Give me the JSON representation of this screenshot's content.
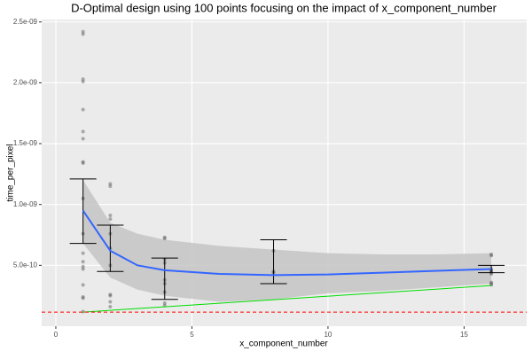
{
  "chart_data": {
    "type": "scatter",
    "title": "D-Optimal design using 100 points focusing on the impact of x_component_number",
    "x_label": "x_component_number",
    "y_label": "time_per_pixel",
    "xlim": [
      -0.52,
      17.3
    ],
    "ylim": [
      0,
      2.52e-09
    ],
    "xticks": [
      0,
      5,
      10,
      15
    ],
    "yticks": [
      {
        "value": 5e-10,
        "label": "5.0e-10"
      },
      {
        "value": 1e-09,
        "label": "1.0e-09"
      },
      {
        "value": 1.5e-09,
        "label": "1.5e-09"
      },
      {
        "value": 2e-09,
        "label": "2.0e-09"
      },
      {
        "value": 2.5e-09,
        "label": "2.5e-09"
      }
    ],
    "grid": true,
    "points": {
      "color": "#555555",
      "x": [
        1,
        1,
        1,
        1,
        1,
        1,
        1,
        1,
        1,
        1,
        1,
        1,
        1,
        1,
        1,
        1,
        1,
        1,
        1,
        2,
        2,
        2,
        2,
        2,
        2,
        2,
        2,
        2,
        2,
        2,
        4,
        4,
        4,
        4,
        4,
        4,
        4,
        4,
        4,
        8,
        8,
        8,
        16,
        16,
        16,
        16,
        16,
        16,
        16,
        16,
        16,
        16
      ],
      "y": [
        2.42e-09,
        2.4e-09,
        2.03e-09,
        2.01e-09,
        1.78e-09,
        1.6e-09,
        1.54e-09,
        1.35e-09,
        1.34e-09,
        1.05e-09,
        7.6e-10,
        6e-10,
        5.3e-10,
        4.9e-10,
        4.7e-10,
        3.4e-10,
        2.4e-10,
        2.3e-10,
        1.2e-10,
        1.17e-09,
        1.15e-09,
        9.1e-10,
        8.8e-10,
        7.6e-10,
        6.4e-10,
        5e-10,
        2.6e-10,
        2.5e-10,
        2e-10,
        1.6e-10,
        7.3e-10,
        7.2e-10,
        5.5e-10,
        5.2e-10,
        3.8e-10,
        3.5e-10,
        2.8e-10,
        1.9e-10,
        1.7e-10,
        6.2e-10,
        4.5e-10,
        4.4e-10,
        5.9e-10,
        5.8e-10,
        4.7e-10,
        4.6e-10,
        4.5e-10,
        4.4e-10,
        4.3e-10,
        3.6e-10,
        3.5e-10,
        3.4e-10
      ]
    },
    "errorbars": {
      "color": "#000000",
      "x": [
        1,
        2,
        4,
        8,
        16
      ],
      "lower": [
        6.8e-10,
        4.5e-10,
        2.2e-10,
        3.5e-10,
        4.4e-10
      ],
      "upper": [
        1.21e-09,
        8.3e-10,
        5.6e-10,
        7.1e-10,
        5e-10
      ]
    },
    "smooth": {
      "color": "#3366ff",
      "ribbon_color": "#c4c4c4",
      "x": [
        1,
        2,
        3,
        4,
        6,
        8,
        10,
        12,
        14,
        16
      ],
      "values": [
        9.5e-10,
        6.2e-10,
        5e-10,
        4.6e-10,
        4.3e-10,
        4.2e-10,
        4.25e-10,
        4.4e-10,
        4.55e-10,
        4.7e-10
      ],
      "upper": [
        1.2e-09,
        8.5e-10,
        7.6e-10,
        7.1e-10,
        6.6e-10,
        6.3e-10,
        6e-10,
        5.9e-10,
        5.9e-10,
        6e-10
      ],
      "lower": [
        6.8e-10,
        4e-10,
        3e-10,
        2.5e-10,
        2e-10,
        2.2e-10,
        2.7e-10,
        2.9e-10,
        3.2e-10,
        3.5e-10
      ]
    },
    "model_line": {
      "color": "#00dd00",
      "x": [
        1,
        16
      ],
      "values": [
        1.16e-10,
        3.34e-10
      ]
    },
    "hline": {
      "color": "#ff0000",
      "value": 1.16e-10
    }
  }
}
